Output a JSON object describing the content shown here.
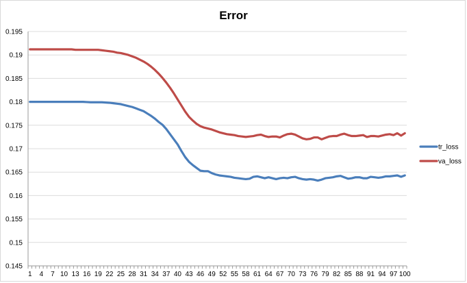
{
  "chart_data": {
    "type": "line",
    "title": "Error",
    "xlabel": "",
    "ylabel": "",
    "ylim": [
      0.145,
      0.195
    ],
    "ytick_step": 0.005,
    "ytick_labels": [
      "0.145",
      "0.15",
      "0.155",
      "0.16",
      "0.165",
      "0.17",
      "0.175",
      "0.18",
      "0.185",
      "0.19",
      "0.195"
    ],
    "x_start": 1,
    "x_end": 100,
    "xtick_labels": [
      "1",
      "4",
      "7",
      "10",
      "13",
      "16",
      "19",
      "22",
      "25",
      "28",
      "31",
      "34",
      "37",
      "40",
      "43",
      "46",
      "49",
      "52",
      "55",
      "58",
      "61",
      "64",
      "67",
      "70",
      "73",
      "76",
      "79",
      "82",
      "85",
      "88",
      "91",
      "94",
      "97",
      "100"
    ],
    "grid": "horizontal",
    "legend_position": "right",
    "series": [
      {
        "name": "tr_loss",
        "color": "#4a7ebb",
        "values": [
          0.18,
          0.18,
          0.18,
          0.18,
          0.18,
          0.18,
          0.18,
          0.18,
          0.18,
          0.18,
          0.18,
          0.18,
          0.18,
          0.18,
          0.18,
          0.17995,
          0.1799,
          0.1799,
          0.1799,
          0.1799,
          0.17985,
          0.1798,
          0.1797,
          0.1796,
          0.1795,
          0.1793,
          0.1791,
          0.1789,
          0.1786,
          0.1783,
          0.178,
          0.1775,
          0.177,
          0.1764,
          0.1757,
          0.1751,
          0.1742,
          0.1731,
          0.172,
          0.1709,
          0.1695,
          0.1682,
          0.1672,
          0.1665,
          0.1659,
          0.1653,
          0.1652,
          0.1652,
          0.1648,
          0.1645,
          0.1643,
          0.1642,
          0.1641,
          0.164,
          0.1638,
          0.1637,
          0.1636,
          0.1635,
          0.1636,
          0.164,
          0.1641,
          0.1639,
          0.1637,
          0.1639,
          0.1637,
          0.1635,
          0.1637,
          0.1638,
          0.1637,
          0.1639,
          0.164,
          0.1637,
          0.1635,
          0.1634,
          0.1635,
          0.1634,
          0.1632,
          0.1634,
          0.1637,
          0.1638,
          0.1639,
          0.1641,
          0.1642,
          0.1639,
          0.1636,
          0.1637,
          0.1639,
          0.1639,
          0.1637,
          0.1637,
          0.164,
          0.1639,
          0.1638,
          0.1639,
          0.1641,
          0.1641,
          0.1642,
          0.1643,
          0.164,
          0.1643
        ]
      },
      {
        "name": "va_loss",
        "color": "#be4b48",
        "values": [
          0.1912,
          0.1912,
          0.1912,
          0.1912,
          0.1912,
          0.1912,
          0.1912,
          0.1912,
          0.1912,
          0.1912,
          0.1912,
          0.1912,
          0.1911,
          0.1911,
          0.1911,
          0.1911,
          0.1911,
          0.1911,
          0.1911,
          0.191,
          0.1909,
          0.1908,
          0.1907,
          0.1905,
          0.1904,
          0.1902,
          0.19,
          0.1897,
          0.1894,
          0.189,
          0.1886,
          0.1881,
          0.1875,
          0.1868,
          0.186,
          0.1851,
          0.1841,
          0.183,
          0.1818,
          0.1805,
          0.1792,
          0.1779,
          0.1768,
          0.176,
          0.1753,
          0.1748,
          0.1745,
          0.1743,
          0.1741,
          0.1738,
          0.1735,
          0.1733,
          0.1731,
          0.173,
          0.1729,
          0.1727,
          0.1726,
          0.1725,
          0.1726,
          0.1727,
          0.1729,
          0.173,
          0.1727,
          0.1725,
          0.1726,
          0.1726,
          0.1724,
          0.1728,
          0.1731,
          0.1732,
          0.173,
          0.1726,
          0.1722,
          0.172,
          0.1721,
          0.1724,
          0.1724,
          0.172,
          0.1723,
          0.1726,
          0.1727,
          0.1727,
          0.173,
          0.1732,
          0.1729,
          0.1727,
          0.1727,
          0.1728,
          0.1729,
          0.1725,
          0.1727,
          0.1727,
          0.1726,
          0.1728,
          0.173,
          0.1731,
          0.1729,
          0.1733,
          0.1728,
          0.1733
        ]
      }
    ]
  }
}
